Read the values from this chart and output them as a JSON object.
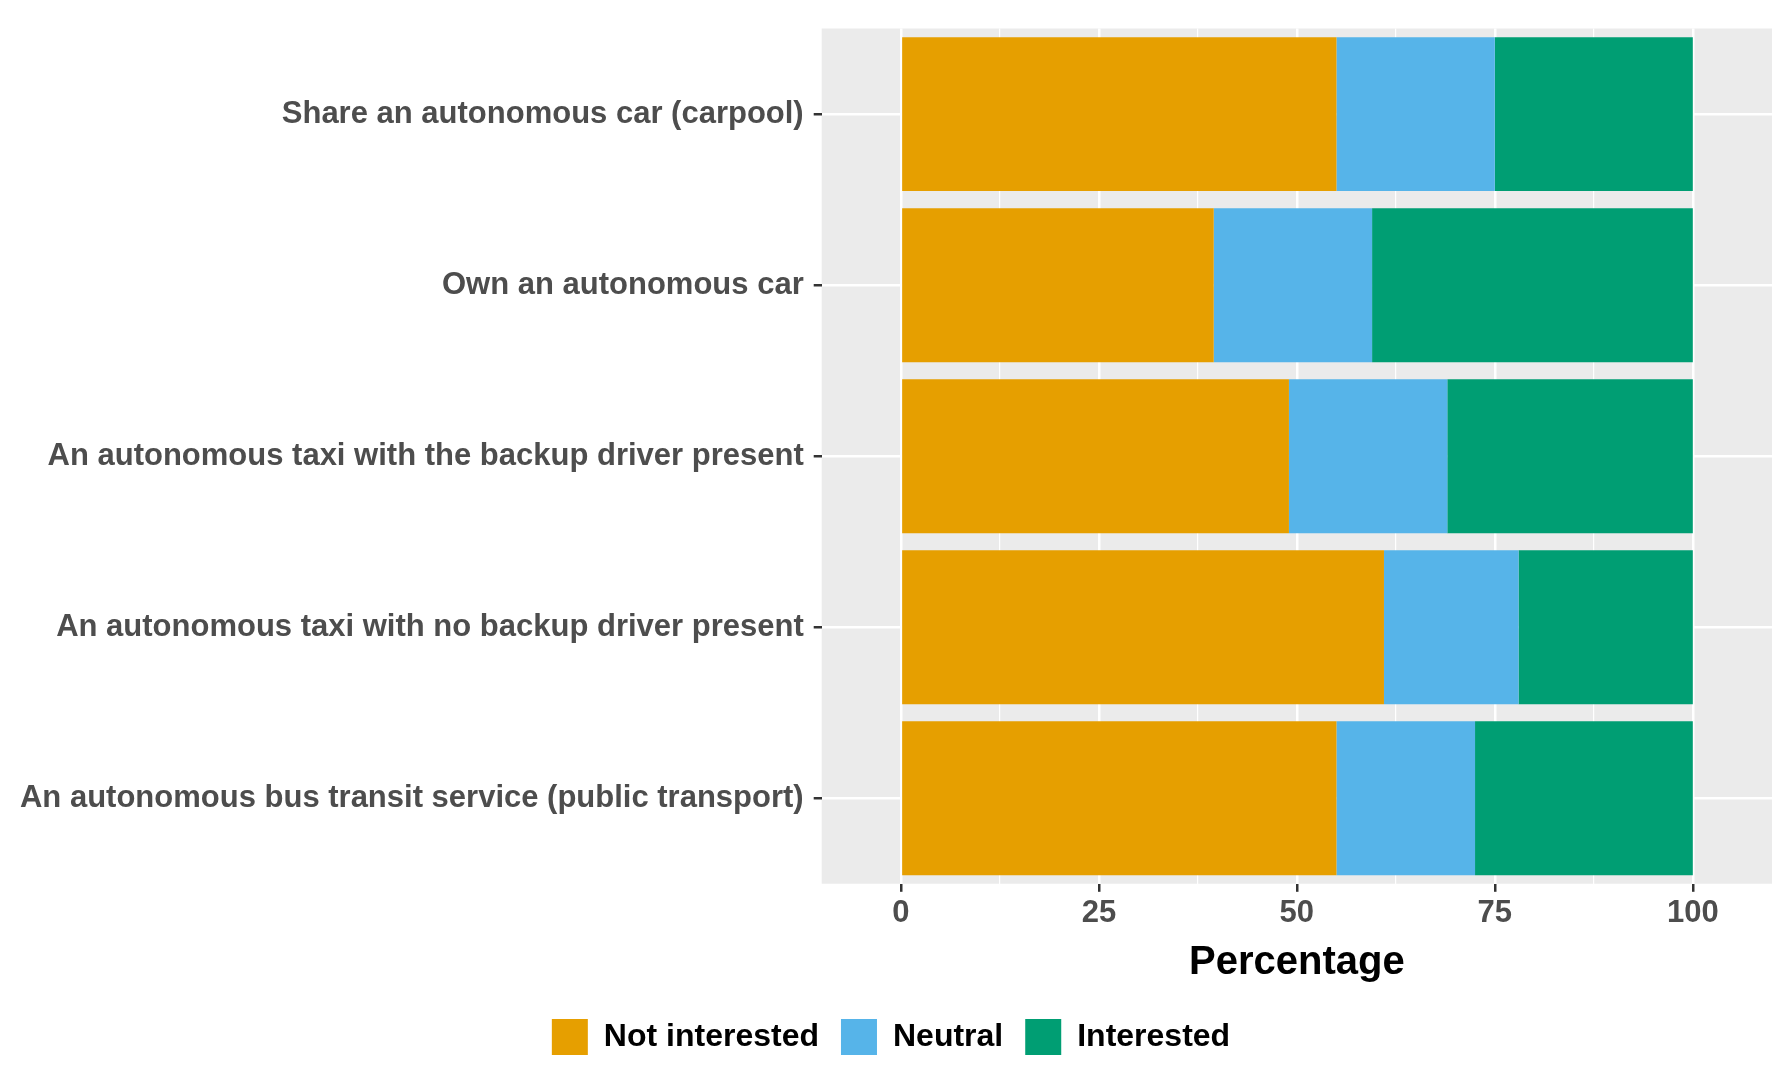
{
  "chart_data": {
    "type": "bar",
    "orientation": "horizontal",
    "stacked": true,
    "xlabel": "Percentage",
    "categories": [
      "Share an autonomous car (carpool)",
      "Own an autonomous car",
      "An autonomous taxi with the backup driver present",
      "An autonomous taxi with no backup driver present",
      "An autonomous bus transit service (public transport)"
    ],
    "series": [
      {
        "name": "Not interested",
        "color": "#e69f00",
        "values": [
          55,
          39.5,
          49,
          61,
          55
        ]
      },
      {
        "name": "Neutral",
        "color": "#56b4e9",
        "values": [
          20,
          20,
          20,
          17,
          17.5
        ]
      },
      {
        "name": "Interested",
        "color": "#009e73",
        "values": [
          25,
          40.5,
          31,
          22,
          27.5
        ]
      }
    ],
    "xlim": [
      -10,
      110
    ],
    "xticks": [
      0,
      {
        "value": 12.5,
        "label": null
      },
      25,
      {
        "value": 37.5,
        "label": null
      },
      50,
      {
        "value": 62.5,
        "label": null
      },
      75,
      {
        "value": 87.5,
        "label": null
      },
      100
    ],
    "grid": true,
    "legend": "bottom"
  }
}
